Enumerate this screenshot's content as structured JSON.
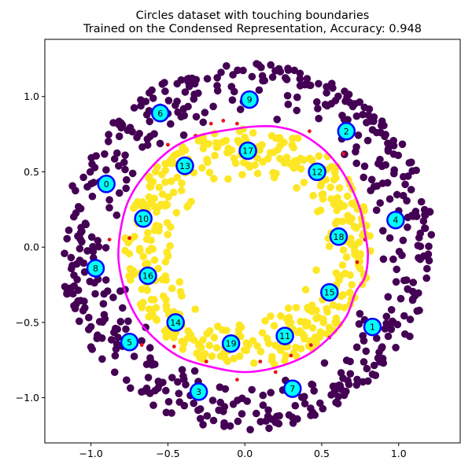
{
  "chart_data": {
    "type": "scatter",
    "title_lines": [
      "Circles dataset with touching boundaries",
      "Trained on the Condensed Representation, Accuracy: 0.948"
    ],
    "xlabel": "",
    "ylabel": "",
    "xlim": [
      -1.3,
      1.4
    ],
    "ylim": [
      -1.3,
      1.38
    ],
    "xticks": [
      -1.0,
      -0.5,
      0.0,
      0.5,
      1.0
    ],
    "xtick_labels": [
      "−1.0",
      "−0.5",
      "0.0",
      "0.5",
      "1.0"
    ],
    "yticks": [
      -1.0,
      -0.5,
      0.0,
      0.5,
      1.0
    ],
    "ytick_labels": [
      "−1.0",
      "−0.5",
      "0.0",
      "0.5",
      "1.0"
    ],
    "grid": false,
    "colors": {
      "outer_class": "#440154",
      "inner_class": "#fde725",
      "misclassified": "#e8141c",
      "boundary": "#ff00ff",
      "center_fill": "#00ffff",
      "center_edge": "#0000ff"
    },
    "outer_ring": {
      "class": 0,
      "r_min": 0.82,
      "r_max": 1.22,
      "count": 520
    },
    "inner_ring": {
      "class": 1,
      "r_min": 0.45,
      "r_max": 0.8,
      "count": 470
    },
    "misclassified_points": [
      [
        -0.32,
        0.74
      ],
      [
        -0.14,
        0.84
      ],
      [
        -0.05,
        0.82
      ],
      [
        0.42,
        0.77
      ],
      [
        0.64,
        0.62
      ],
      [
        -0.22,
        0.82
      ],
      [
        -0.88,
        0.05
      ],
      [
        0.78,
        0.05
      ],
      [
        -0.75,
        0.06
      ],
      [
        0.73,
        -0.1
      ],
      [
        -0.67,
        -0.65
      ],
      [
        -0.46,
        -0.66
      ],
      [
        -0.25,
        -0.76
      ],
      [
        -0.05,
        -0.88
      ],
      [
        0.1,
        -0.76
      ],
      [
        0.43,
        -0.65
      ],
      [
        0.55,
        -0.6
      ],
      [
        0.2,
        -0.83
      ],
      [
        0.3,
        -0.72
      ],
      [
        -0.5,
        0.68
      ]
    ],
    "boundary_curve": [
      [
        0.2,
        0.8
      ],
      [
        0.35,
        0.76
      ],
      [
        0.5,
        0.66
      ],
      [
        0.6,
        0.55
      ],
      [
        0.68,
        0.42
      ],
      [
        0.75,
        0.25
      ],
      [
        0.78,
        0.1
      ],
      [
        0.8,
        -0.05
      ],
      [
        0.78,
        -0.2
      ],
      [
        0.72,
        -0.3
      ],
      [
        0.66,
        -0.46
      ],
      [
        0.55,
        -0.6
      ],
      [
        0.4,
        -0.72
      ],
      [
        0.2,
        -0.8
      ],
      [
        0.0,
        -0.83
      ],
      [
        -0.2,
        -0.8
      ],
      [
        -0.4,
        -0.74
      ],
      [
        -0.55,
        -0.64
      ],
      [
        -0.68,
        -0.5
      ],
      [
        -0.77,
        -0.32
      ],
      [
        -0.82,
        -0.1
      ],
      [
        -0.81,
        0.1
      ],
      [
        -0.76,
        0.3
      ],
      [
        -0.65,
        0.48
      ],
      [
        -0.48,
        0.65
      ],
      [
        -0.3,
        0.74
      ],
      [
        -0.1,
        0.78
      ],
      [
        0.05,
        0.8
      ],
      [
        0.2,
        0.8
      ]
    ],
    "centers": [
      {
        "id": "0",
        "x": -0.9,
        "y": 0.42
      },
      {
        "id": "1",
        "x": 0.83,
        "y": -0.53
      },
      {
        "id": "2",
        "x": 0.66,
        "y": 0.77
      },
      {
        "id": "3",
        "x": -0.3,
        "y": -0.96
      },
      {
        "id": "4",
        "x": 0.98,
        "y": 0.18
      },
      {
        "id": "5",
        "x": -0.75,
        "y": -0.63
      },
      {
        "id": "6",
        "x": -0.55,
        "y": 0.89
      },
      {
        "id": "7",
        "x": 0.31,
        "y": -0.94
      },
      {
        "id": "8",
        "x": -0.97,
        "y": -0.14
      },
      {
        "id": "9",
        "x": 0.03,
        "y": 0.98
      },
      {
        "id": "10",
        "x": -0.66,
        "y": 0.19
      },
      {
        "id": "11",
        "x": 0.26,
        "y": -0.59
      },
      {
        "id": "12",
        "x": 0.47,
        "y": 0.5
      },
      {
        "id": "13",
        "x": -0.39,
        "y": 0.54
      },
      {
        "id": "14",
        "x": -0.45,
        "y": -0.5
      },
      {
        "id": "15",
        "x": 0.55,
        "y": -0.3
      },
      {
        "id": "16",
        "x": -0.63,
        "y": -0.19
      },
      {
        "id": "17",
        "x": 0.02,
        "y": 0.64
      },
      {
        "id": "18",
        "x": 0.61,
        "y": 0.07
      },
      {
        "id": "19",
        "x": -0.09,
        "y": -0.64
      }
    ]
  }
}
